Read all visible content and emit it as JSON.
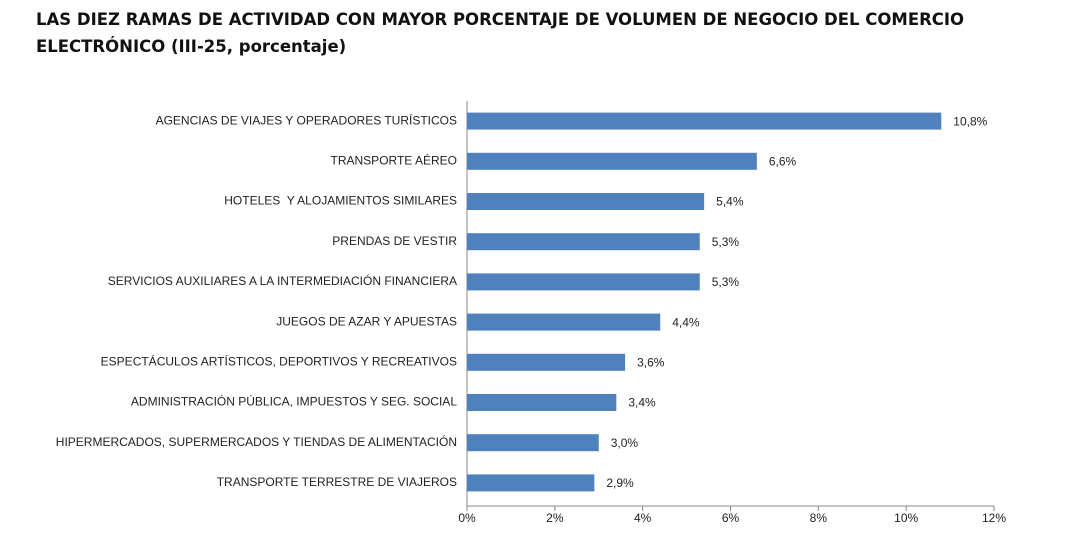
{
  "chart_data": {
    "type": "bar",
    "orientation": "horizontal",
    "title": "LAS DIEZ RAMAS DE ACTIVIDAD CON MAYOR PORCENTAJE DE VOLUMEN DE NEGOCIO DEL COMERCIO ELECTRÓNICO (III-25, porcentaje)",
    "categories": [
      "AGENCIAS DE VIAJES Y OPERADORES TURÍSTICOS",
      "TRANSPORTE AÉREO",
      "HOTELES  Y ALOJAMIENTOS SIMILARES",
      "PRENDAS DE VESTIR",
      "SERVICIOS AUXILIARES A LA INTERMEDIACIÓN FINANCIERA",
      "JUEGOS DE AZAR Y APUESTAS",
      "ESPECTÁCULOS ARTÍSTICOS, DEPORTIVOS Y RECREATIVOS",
      "ADMINISTRACIÓN PÚBLICA, IMPUESTOS Y SEG. SOCIAL",
      "HIPERMERCADOS, SUPERMERCADOS Y TIENDAS DE ALIMENTACIÓN",
      "TRANSPORTE TERRESTRE DE VIAJEROS"
    ],
    "values": [
      10.8,
      6.6,
      5.4,
      5.3,
      5.3,
      4.4,
      3.6,
      3.4,
      3.0,
      2.9
    ],
    "value_labels": [
      "10,8%",
      "6,6%",
      "5,4%",
      "5,3%",
      "5,3%",
      "4,4%",
      "3,6%",
      "3,4%",
      "3,0%",
      "2,9%"
    ],
    "color": "#4f81bd",
    "xlim": [
      0,
      12
    ],
    "xticks": [
      {
        "value": 0,
        "label": "0%"
      },
      {
        "value": 2,
        "label": "2%"
      },
      {
        "value": 4,
        "label": "4%"
      },
      {
        "value": 6,
        "label": "6%"
      },
      {
        "value": 8,
        "label": "8%"
      },
      {
        "value": 10,
        "label": "10%"
      },
      {
        "value": 12,
        "label": "12%"
      }
    ],
    "grid": false
  }
}
